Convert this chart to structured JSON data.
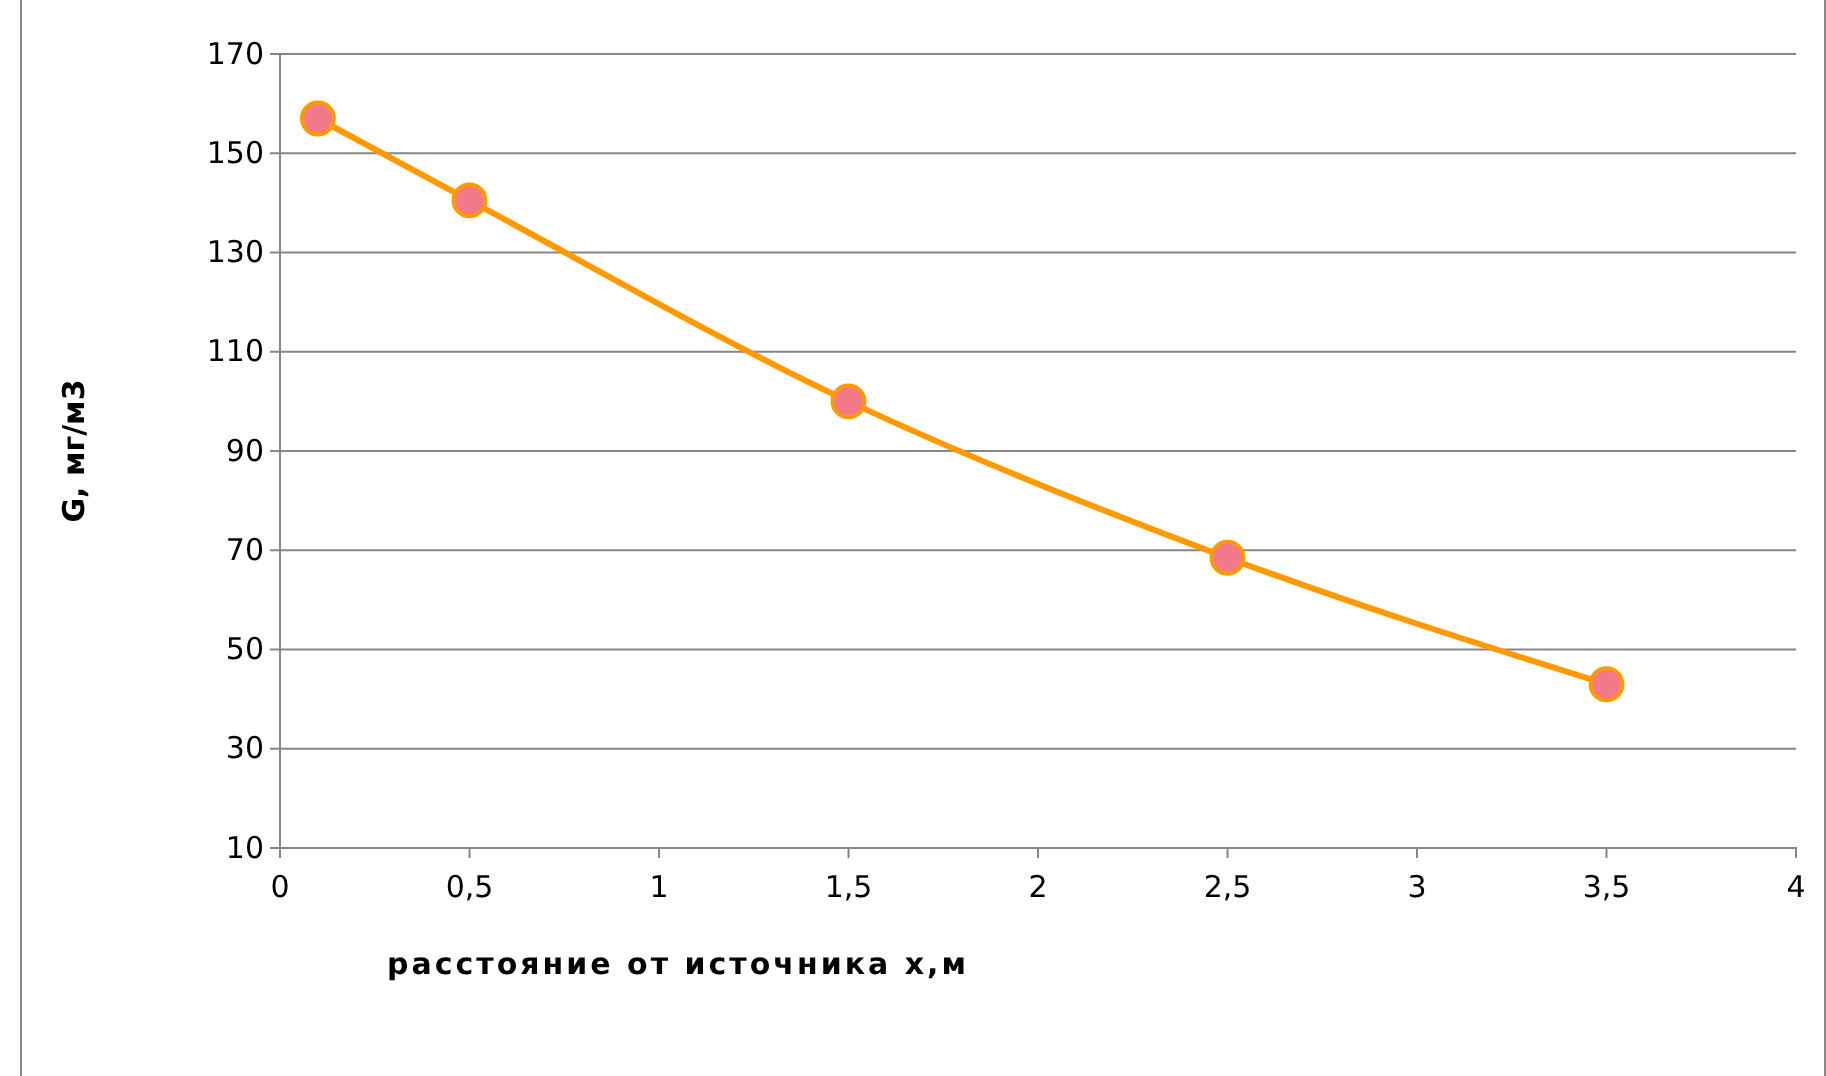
{
  "chart_data": {
    "type": "line",
    "xlabel": "расстояние от источника х,м",
    "ylabel": "G, мг/м3",
    "x": [
      0.1,
      0.5,
      1.5,
      2.5,
      3.5
    ],
    "series": [
      {
        "color": "#ff9900",
        "values": [
          157,
          140.5,
          100,
          68.5,
          43
        ]
      }
    ],
    "xlim": [
      0,
      4
    ],
    "xticks": [
      0,
      {
        "value": 0.5,
        "label": "0,5"
      },
      1,
      {
        "value": 1.5,
        "label": "1,5"
      },
      2,
      {
        "value": 2.5,
        "label": "2,5"
      },
      3,
      {
        "value": 3.5,
        "label": "3,5"
      },
      4
    ],
    "ylim": [
      10,
      170
    ],
    "yticks": [
      10,
      30,
      50,
      70,
      90,
      110,
      130,
      150,
      170
    ],
    "grid": "y",
    "marker": "circle",
    "line_style": "solid"
  }
}
